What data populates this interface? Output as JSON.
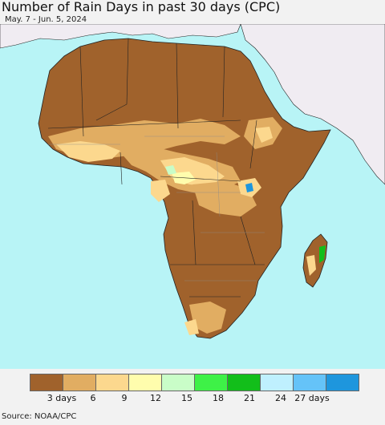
{
  "title": "Number of Rain Days in past 30 days (CPC)",
  "subtitle": "May. 7 - Jun. 5, 2024",
  "source": "Source: NOAA/CPC",
  "colors": {
    "ocean": "#b8f4f6",
    "land_other": "#f0ecf2",
    "border": "#222222",
    "admin_border": "#8a8a8a"
  },
  "legend": {
    "colors": [
      "#a0622c",
      "#e1ad62",
      "#fcd88e",
      "#fffdad",
      "#c9fdc8",
      "#3ef147",
      "#12be1a",
      "#bff0fe",
      "#65c3f8",
      "#1e96dd"
    ],
    "labels": [
      "3 days",
      "6",
      "9",
      "12",
      "15",
      "18",
      "21",
      "24",
      "27 days"
    ]
  }
}
